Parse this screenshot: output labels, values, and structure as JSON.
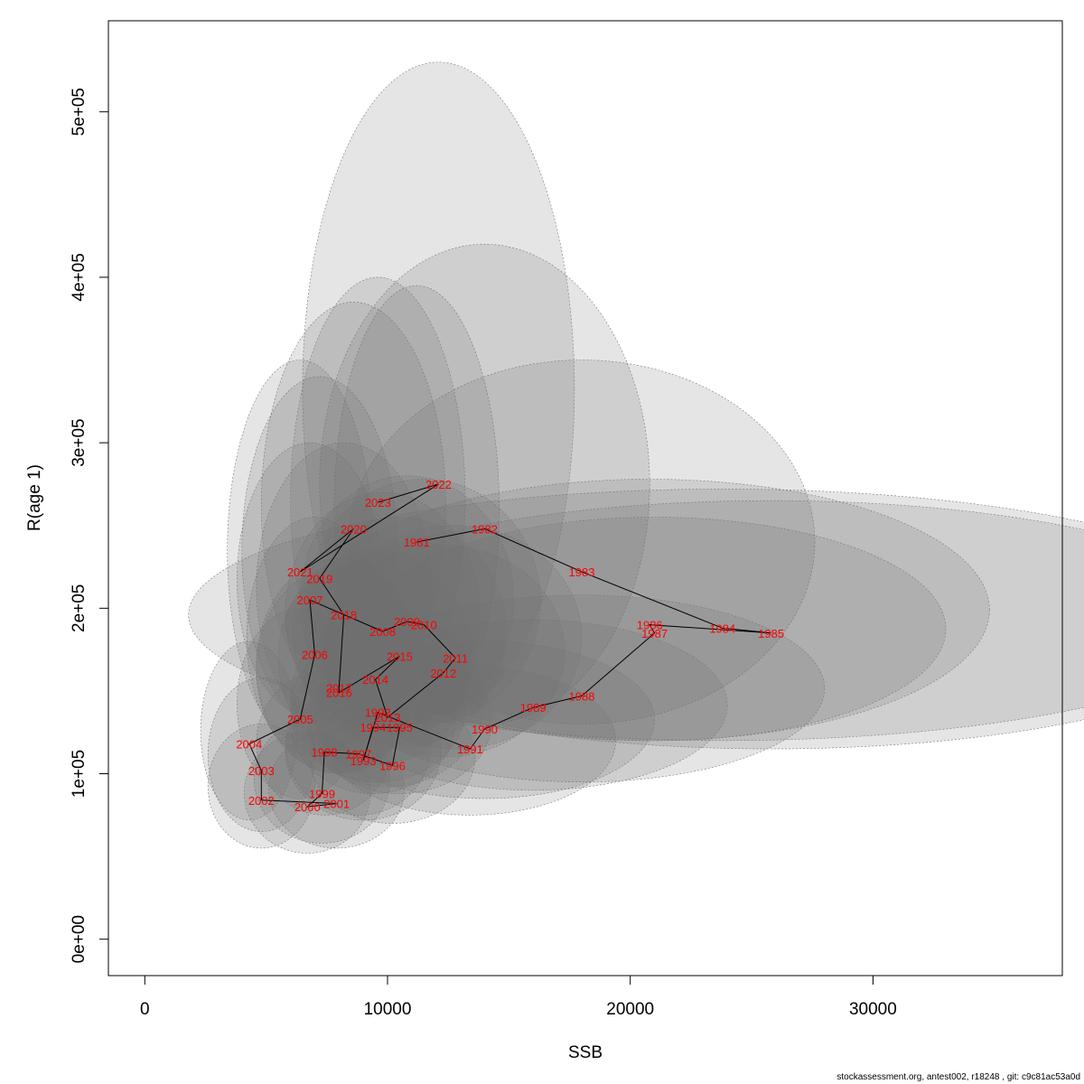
{
  "chart_data": {
    "type": "scatter",
    "xlabel": "SSB",
    "ylabel": "R(age 1)",
    "xlim": [
      -1500,
      37800
    ],
    "ylim": [
      -22000,
      555000
    ],
    "x_ticks": [
      0,
      10000,
      20000,
      30000
    ],
    "x_tick_labels": [
      "0",
      "10000",
      "20000",
      "30000"
    ],
    "y_ticks": [
      0,
      100000,
      200000,
      300000,
      400000,
      500000
    ],
    "y_tick_labels": [
      "0e+00",
      "1e+05",
      "2e+05",
      "3e+05",
      "4e+05",
      "5e+05"
    ],
    "grid": false,
    "point_label_color": "#ff0000",
    "ellipse_fill": "rgba(110,110,110,0.18)",
    "ellipse_stroke": "#777777",
    "series": [
      {
        "points": [
          {
            "year": "1981",
            "ssb": 11200,
            "r": 240000,
            "sd_ssb": 1700,
            "r_lo": 125000,
            "r_hi": 395000
          },
          {
            "year": "1982",
            "ssb": 14000,
            "r": 248000,
            "sd_ssb": 3400,
            "r_lo": 130000,
            "r_hi": 420000
          },
          {
            "year": "1983",
            "ssb": 18000,
            "r": 222000,
            "sd_ssb": 4800,
            "r_lo": 130000,
            "r_hi": 350000
          },
          {
            "year": "1984",
            "ssb": 23800,
            "r": 188000,
            "sd_ssb": 11000,
            "r_lo": 120000,
            "r_hi": 272000
          },
          {
            "year": "1985",
            "ssb": 25800,
            "r": 185000,
            "sd_ssb": 10000,
            "r_lo": 115000,
            "r_hi": 265000
          },
          {
            "year": "1986",
            "ssb": 20800,
            "r": 190000,
            "sd_ssb": 7000,
            "r_lo": 120000,
            "r_hi": 278000
          },
          {
            "year": "1987",
            "ssb": 21000,
            "r": 185000,
            "sd_ssb": 6000,
            "r_lo": 120000,
            "r_hi": 255000
          },
          {
            "year": "1988",
            "ssb": 18000,
            "r": 147000,
            "sd_ssb": 5000,
            "r_lo": 95000,
            "r_hi": 208000
          },
          {
            "year": "1989",
            "ssb": 16000,
            "r": 140000,
            "sd_ssb": 4000,
            "r_lo": 90000,
            "r_hi": 193000
          },
          {
            "year": "1990",
            "ssb": 14000,
            "r": 127000,
            "sd_ssb": 3500,
            "r_lo": 85000,
            "r_hi": 180000
          },
          {
            "year": "1991",
            "ssb": 13400,
            "r": 115000,
            "sd_ssb": 3000,
            "r_lo": 75000,
            "r_hi": 165000
          },
          {
            "year": "1992",
            "ssb": 9600,
            "r": 137000,
            "sd_ssb": 1800,
            "r_lo": 95000,
            "r_hi": 185000
          },
          {
            "year": "1993",
            "ssb": 9000,
            "r": 108000,
            "sd_ssb": 1600,
            "r_lo": 72000,
            "r_hi": 155000
          },
          {
            "year": "1994",
            "ssb": 9400,
            "r": 128000,
            "sd_ssb": 1700,
            "r_lo": 88000,
            "r_hi": 176000
          },
          {
            "year": "1995",
            "ssb": 10500,
            "r": 128000,
            "sd_ssb": 1900,
            "r_lo": 88000,
            "r_hi": 176000
          },
          {
            "year": "1996",
            "ssb": 10200,
            "r": 105000,
            "sd_ssb": 1700,
            "r_lo": 70000,
            "r_hi": 150000
          },
          {
            "year": "1997",
            "ssb": 8800,
            "r": 112000,
            "sd_ssb": 1500,
            "r_lo": 75000,
            "r_hi": 160000
          },
          {
            "year": "1998",
            "ssb": 7400,
            "r": 113000,
            "sd_ssb": 1400,
            "r_lo": 75000,
            "r_hi": 162000
          },
          {
            "year": "1999",
            "ssb": 7300,
            "r": 88000,
            "sd_ssb": 1400,
            "r_lo": 58000,
            "r_hi": 135000
          },
          {
            "year": "2000",
            "ssb": 6700,
            "r": 80000,
            "sd_ssb": 1300,
            "r_lo": 52000,
            "r_hi": 125000
          },
          {
            "year": "2001",
            "ssb": 7900,
            "r": 82000,
            "sd_ssb": 1400,
            "r_lo": 55000,
            "r_hi": 127000
          },
          {
            "year": "2002",
            "ssb": 4800,
            "r": 84000,
            "sd_ssb": 1100,
            "r_lo": 55000,
            "r_hi": 130000
          },
          {
            "year": "2003",
            "ssb": 4800,
            "r": 102000,
            "sd_ssb": 1100,
            "r_lo": 65000,
            "r_hi": 158000
          },
          {
            "year": "2004",
            "ssb": 4300,
            "r": 118000,
            "sd_ssb": 1000,
            "r_lo": 72000,
            "r_hi": 180000
          },
          {
            "year": "2005",
            "ssb": 6400,
            "r": 133000,
            "sd_ssb": 1300,
            "r_lo": 85000,
            "r_hi": 200000
          },
          {
            "year": "2006",
            "ssb": 7000,
            "r": 172000,
            "sd_ssb": 1400,
            "r_lo": 110000,
            "r_hi": 255000
          },
          {
            "year": "2007",
            "ssb": 6800,
            "r": 205000,
            "sd_ssb": 1500,
            "r_lo": 135000,
            "r_hi": 300000
          },
          {
            "year": "2008",
            "ssb": 9800,
            "r": 186000,
            "sd_ssb": 2000,
            "r_lo": 125000,
            "r_hi": 270000
          },
          {
            "year": "2009",
            "ssb": 10800,
            "r": 192000,
            "sd_ssb": 2200,
            "r_lo": 130000,
            "r_hi": 280000
          },
          {
            "year": "2010",
            "ssb": 11500,
            "r": 190000,
            "sd_ssb": 2400,
            "r_lo": 130000,
            "r_hi": 278000
          },
          {
            "year": "2011",
            "ssb": 12800,
            "r": 170000,
            "sd_ssb": 2600,
            "r_lo": 115000,
            "r_hi": 250000
          },
          {
            "year": "2012",
            "ssb": 12300,
            "r": 161000,
            "sd_ssb": 2500,
            "r_lo": 110000,
            "r_hi": 238000
          },
          {
            "year": "2013",
            "ssb": 10000,
            "r": 134000,
            "sd_ssb": 2000,
            "r_lo": 92000,
            "r_hi": 198000
          },
          {
            "year": "2014",
            "ssb": 9500,
            "r": 157000,
            "sd_ssb": 2000,
            "r_lo": 105000,
            "r_hi": 235000
          },
          {
            "year": "2015",
            "ssb": 10500,
            "r": 171000,
            "sd_ssb": 2200,
            "r_lo": 115000,
            "r_hi": 255000
          },
          {
            "year": "2016",
            "ssb": 8000,
            "r": 149000,
            "sd_ssb": 1700,
            "r_lo": 100000,
            "r_hi": 225000
          },
          {
            "year": "2017",
            "ssb": 8000,
            "r": 152000,
            "sd_ssb": 1700,
            "r_lo": 100000,
            "r_hi": 230000
          },
          {
            "year": "2018",
            "ssb": 8200,
            "r": 196000,
            "sd_ssb": 1800,
            "r_lo": 125000,
            "r_hi": 300000
          },
          {
            "year": "2019",
            "ssb": 7200,
            "r": 218000,
            "sd_ssb": 1600,
            "r_lo": 130000,
            "r_hi": 340000
          },
          {
            "year": "2020",
            "ssb": 8600,
            "r": 248000,
            "sd_ssb": 1900,
            "r_lo": 140000,
            "r_hi": 385000
          },
          {
            "year": "2021",
            "ssb": 6400,
            "r": 222000,
            "sd_ssb": 1500,
            "r_lo": 120000,
            "r_hi": 350000
          },
          {
            "year": "2022",
            "ssb": 12100,
            "r": 275000,
            "sd_ssb": 2800,
            "r_lo": 135000,
            "r_hi": 530000
          },
          {
            "year": "2023",
            "ssb": 9600,
            "r": 264000,
            "sd_ssb": 1800,
            "r_lo": 130000,
            "r_hi": 400000
          }
        ]
      }
    ]
  },
  "footer": {
    "text": "stockassessment.org, antest002, r18248 , git: c9c81ac53a0d"
  }
}
